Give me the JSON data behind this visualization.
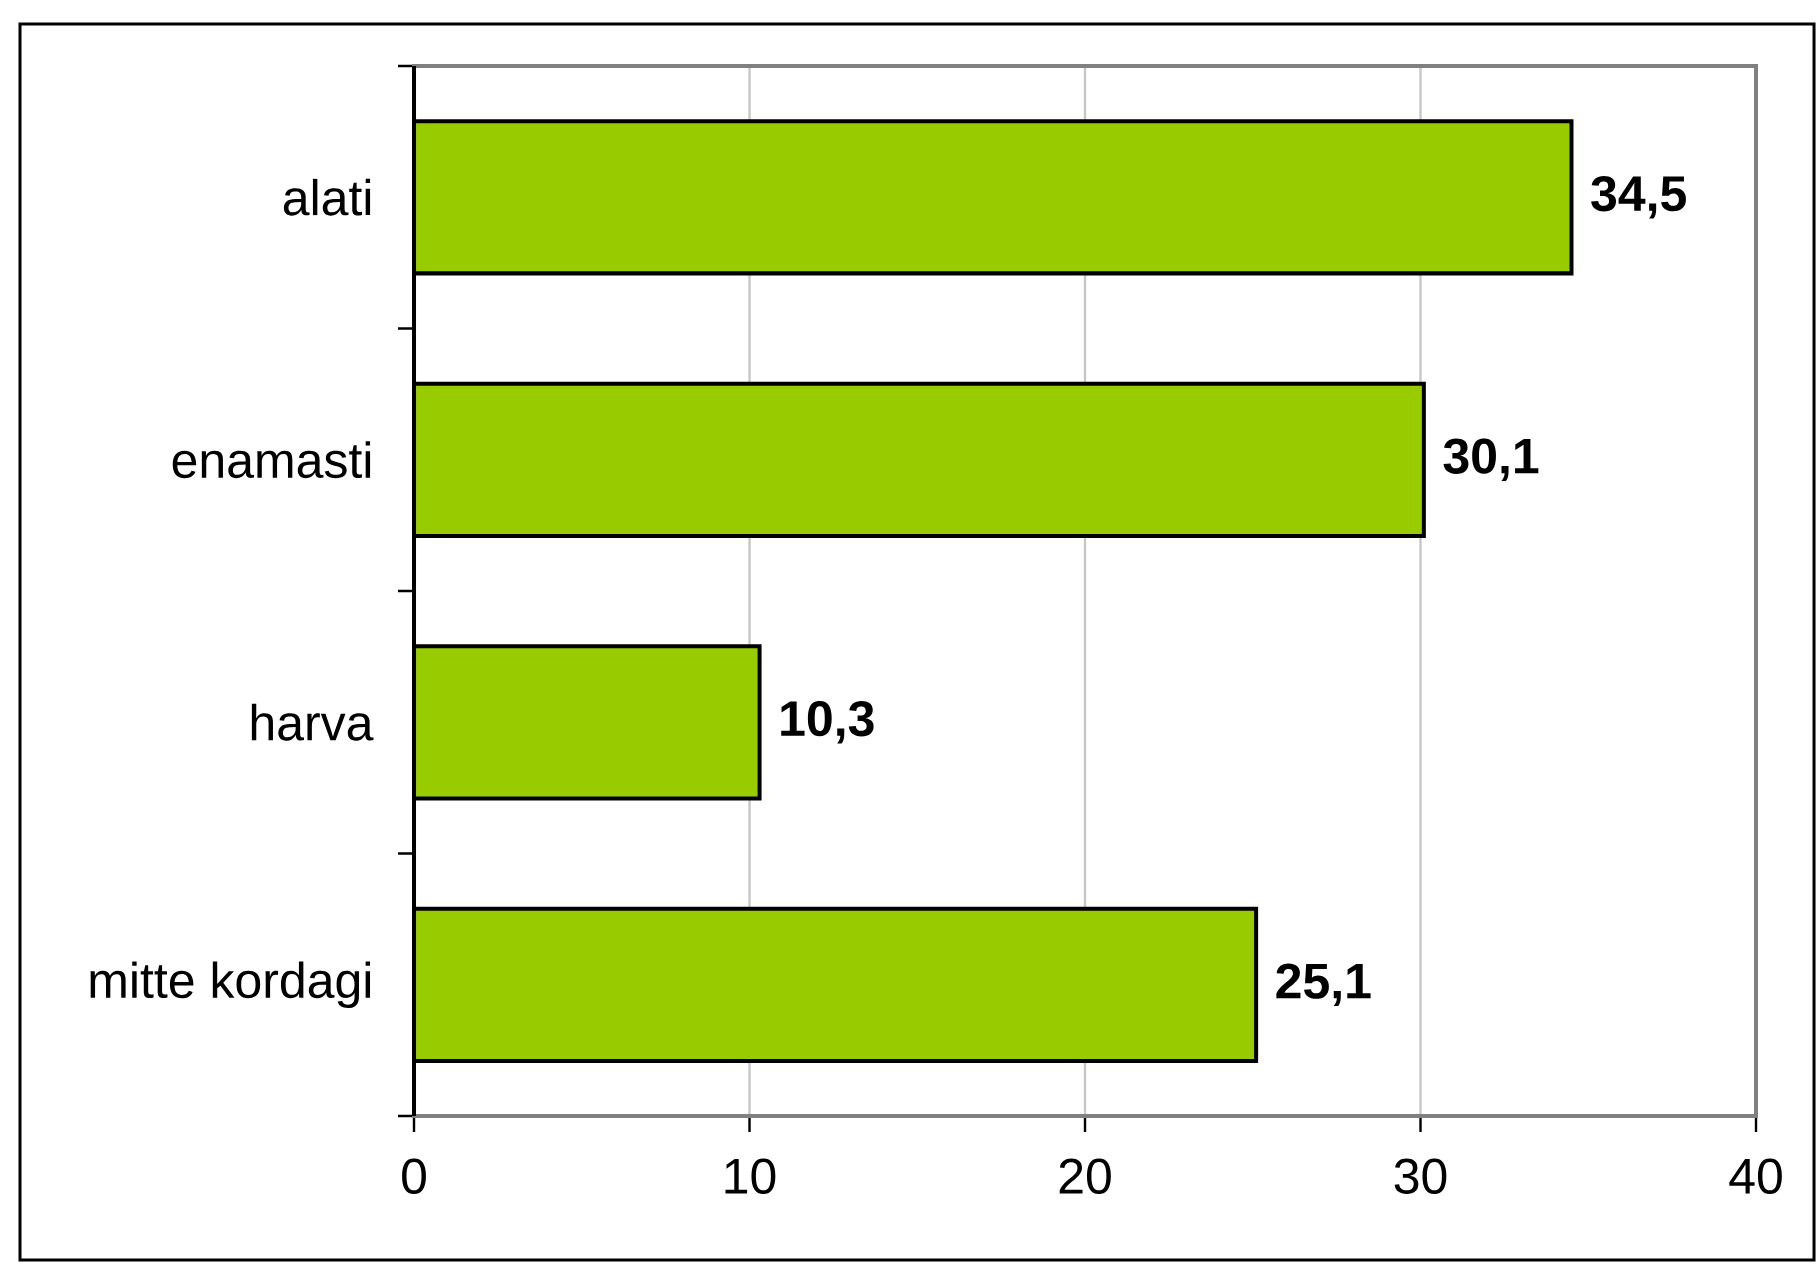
{
  "chart_data": {
    "type": "bar",
    "orientation": "horizontal",
    "categories": [
      "alati",
      "enamasti",
      "harva",
      "mitte kordagi"
    ],
    "values": [
      34.5,
      30.1,
      10.3,
      25.1
    ],
    "value_labels": [
      "34,5",
      "30,1",
      "10,3",
      "25,1"
    ],
    "color": "#99cc00",
    "xlim": [
      0,
      40
    ],
    "xticks": [
      0,
      10,
      20,
      30,
      40
    ],
    "grid": "x"
  }
}
